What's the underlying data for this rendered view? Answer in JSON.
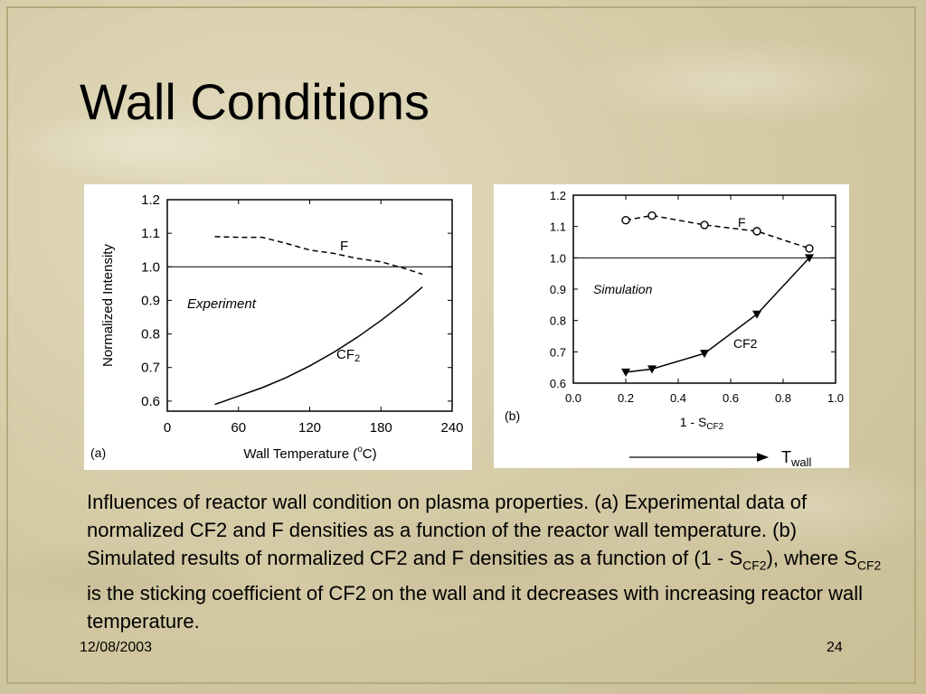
{
  "slide": {
    "title": "Wall Conditions",
    "date": "12/08/2003",
    "page_number": "24",
    "caption": {
      "part1": "Influences of reactor wall condition on plasma properties. (a) Experimental data of normalized CF2 and F densities as a function of the reactor wall temperature. (b) Simulated results of normalized CF2 and F densities as a function of (1 - S",
      "sub1": "CF2",
      "part2": "), where S",
      "sub2": "CF2",
      "part3": " is the sticking coefficient of CF2 on the wall and it decreases with increasing reactor wall temperature."
    }
  },
  "chart_data": [
    {
      "panel": "(a)",
      "type": "line",
      "xlabel_main": "Wall Temperature (",
      "xlabel_sup": "o",
      "xlabel_end": "C)",
      "ylabel": "Normalized Intensity",
      "xlim": [
        0,
        240
      ],
      "ylim": [
        0.57,
        1.2
      ],
      "xticks": [
        "0",
        "60",
        "120",
        "180",
        "240"
      ],
      "yticks": [
        "0.6",
        "0.7",
        "0.8",
        "0.9",
        "1.0",
        "1.1",
        "1.2"
      ],
      "annotation": "Experiment",
      "reference_line": 1.0,
      "series": [
        {
          "name": "F",
          "style": "dashed",
          "x": [
            40,
            60,
            80,
            100,
            120,
            140,
            160,
            180,
            200,
            215
          ],
          "y": [
            1.09,
            1.088,
            1.088,
            1.07,
            1.05,
            1.04,
            1.025,
            1.015,
            0.995,
            0.978
          ]
        },
        {
          "name": "CF",
          "name_sub": "2",
          "style": "solid",
          "x": [
            40,
            60,
            80,
            100,
            120,
            140,
            160,
            180,
            200,
            215
          ],
          "y": [
            0.59,
            0.615,
            0.64,
            0.67,
            0.705,
            0.745,
            0.79,
            0.84,
            0.895,
            0.94
          ]
        }
      ]
    },
    {
      "panel": "(b)",
      "type": "line",
      "xlabel_main": "1 - S",
      "xlabel_sub": "CF2",
      "arrow_label": "T",
      "arrow_label_sub": "wall",
      "xlim": [
        0.0,
        1.0
      ],
      "ylim": [
        0.6,
        1.2
      ],
      "xticks": [
        "0.0",
        "0.2",
        "0.4",
        "0.6",
        "0.8",
        "1.0"
      ],
      "yticks": [
        "0.6",
        "0.7",
        "0.8",
        "0.9",
        "1.0",
        "1.1",
        "1.2"
      ],
      "annotation": "Simulation",
      "reference_line": 1.0,
      "series": [
        {
          "name": "F",
          "style": "dashed",
          "marker": "circle",
          "x": [
            0.2,
            0.3,
            0.5,
            0.7,
            0.9
          ],
          "y": [
            1.12,
            1.135,
            1.105,
            1.085,
            1.03
          ]
        },
        {
          "name": "CF2",
          "style": "solid",
          "marker": "triangle-down",
          "x": [
            0.2,
            0.3,
            0.5,
            0.7,
            0.9
          ],
          "y": [
            0.635,
            0.645,
            0.695,
            0.82,
            1.0
          ]
        }
      ]
    }
  ]
}
